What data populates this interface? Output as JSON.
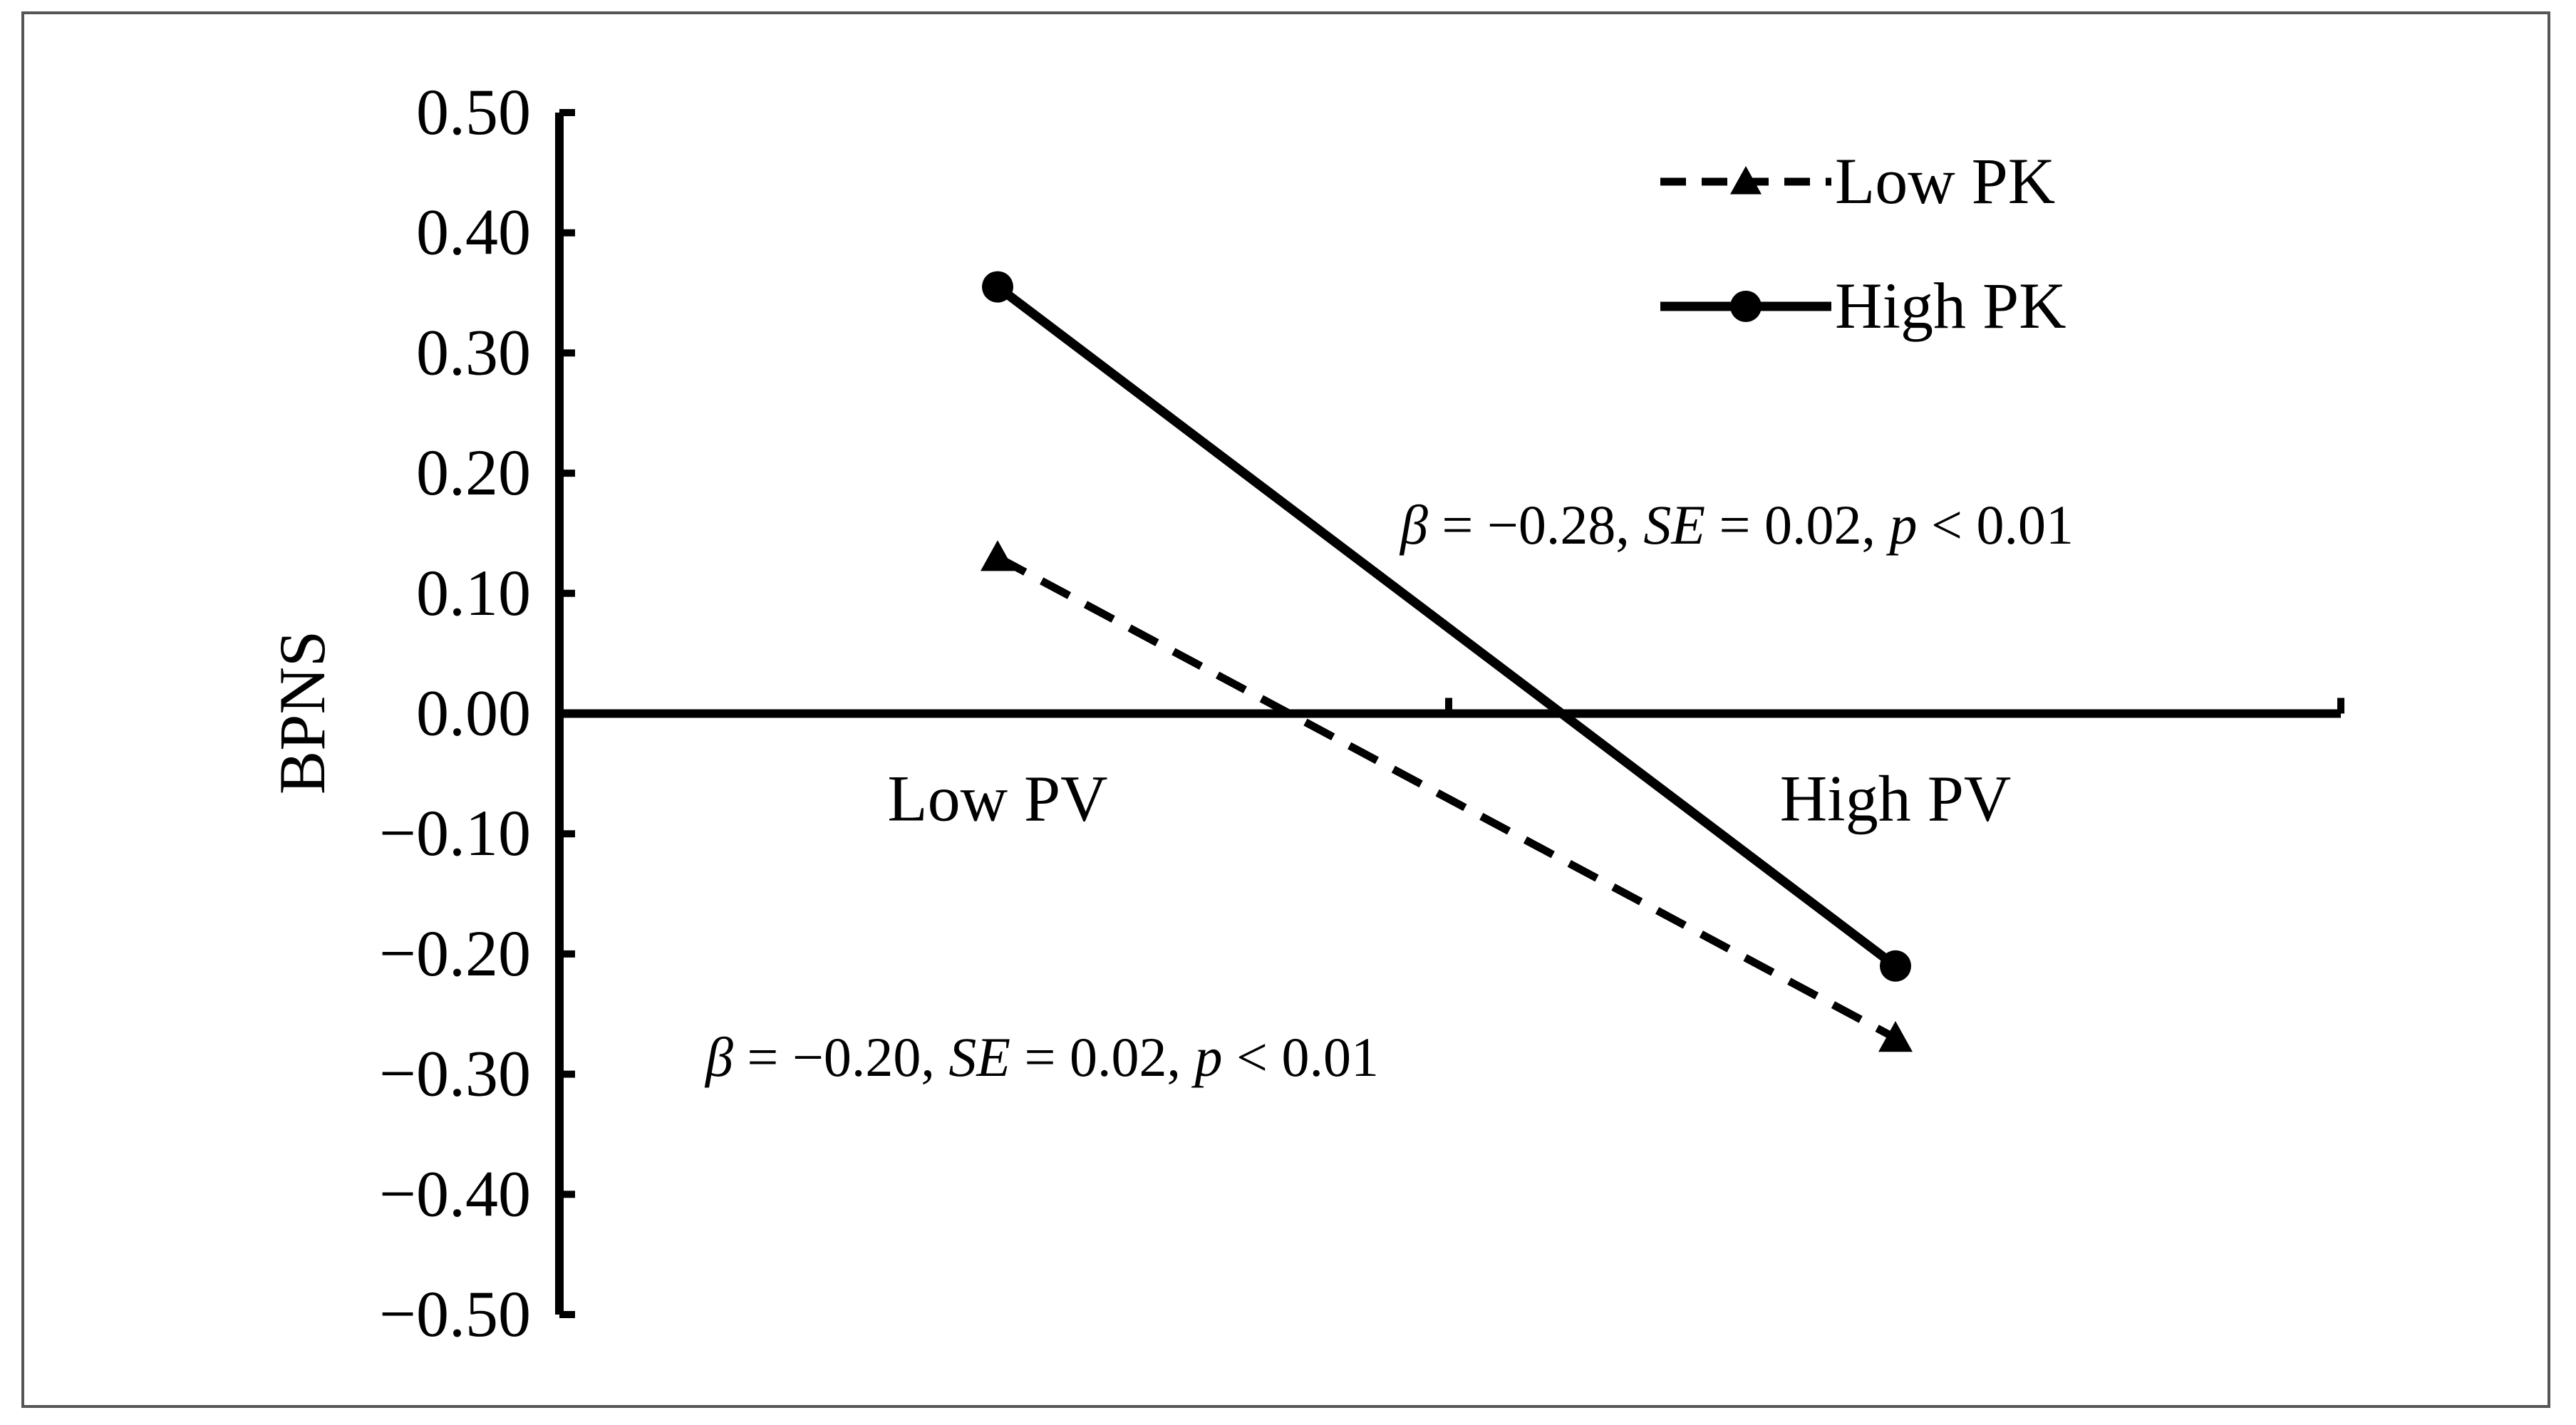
{
  "chart_data": {
    "type": "line",
    "ylabel": "BPNS",
    "xlabel": "",
    "categories": [
      "Low PV",
      "High PV"
    ],
    "ylim": [
      -0.5,
      0.5
    ],
    "yticks": [
      "0.50",
      "0.40",
      "0.30",
      "0.20",
      "0.10",
      "0.00",
      "−0.10",
      "−0.20",
      "−0.30",
      "−0.40",
      "−0.50"
    ],
    "ytick_values": [
      0.5,
      0.4,
      0.3,
      0.2,
      0.1,
      0.0,
      -0.1,
      -0.2,
      -0.3,
      -0.4,
      -0.5
    ],
    "series": [
      {
        "name": "Low PK",
        "values": [
          0.13,
          -0.27
        ],
        "style": "dashed",
        "marker": "triangle",
        "color": "#000000"
      },
      {
        "name": "High PK",
        "values": [
          0.355,
          -0.21
        ],
        "style": "solid",
        "marker": "circle",
        "color": "#000000"
      }
    ],
    "legend_position": "top-right",
    "grid": false,
    "annotations": [
      {
        "beta": "β",
        "eq1": " = −0.28, ",
        "se": "SE",
        "eq2": " = 0.02, ",
        "p": "p",
        "eq3": " < 0.01"
      },
      {
        "beta": "β",
        "eq1": " = −0.20, ",
        "se": "SE",
        "eq2": " = 0.02, ",
        "p": "p",
        "eq3": " < 0.01"
      }
    ]
  }
}
